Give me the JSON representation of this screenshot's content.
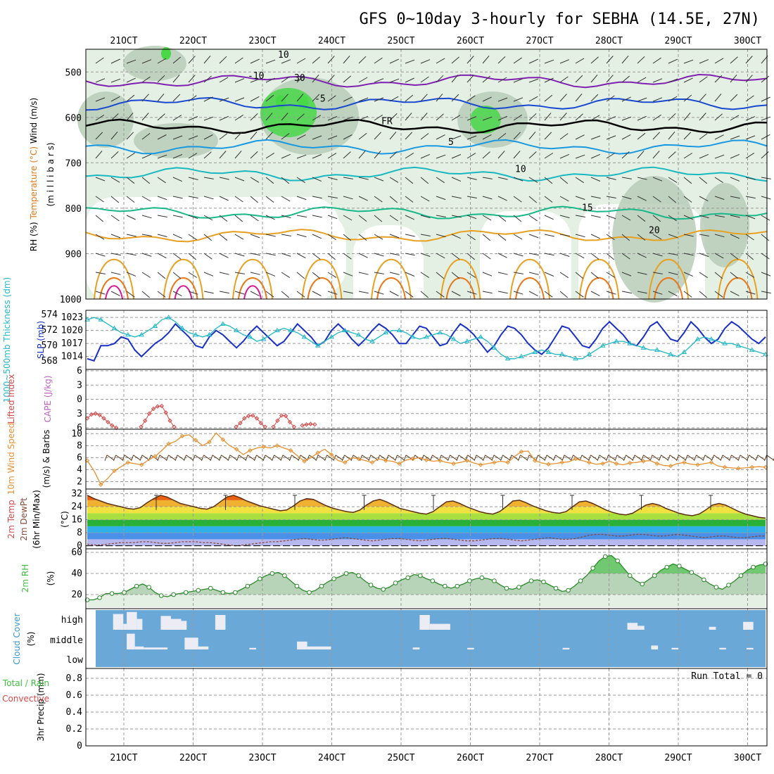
{
  "title": "GFS 0~10day 3-hourly for SEBHA (14.5E, 27N)",
  "run_total": "Run Total = 0",
  "colors": {
    "rh_dark": "#6fa06f",
    "rh_mid": "#b8cdb8",
    "rh_light": "#e4f0e4",
    "rh_green": "#48d848",
    "temp_purple": "#8020b0",
    "temp_blue": "#1848d0",
    "temp_lblue": "#1898e0",
    "temp_cyan": "#18b8c0",
    "temp_teal": "#18b888",
    "temp_orange": "#e8a020",
    "temp_dorange": "#e87818",
    "temp_magenta": "#d81890",
    "slp": "#1830c8",
    "thickness": "#20b8c8",
    "lifted": "#d84848",
    "windspeed": "#e89030",
    "rh2m": "#40c040",
    "cloud": "#6aa8d8",
    "cloud_gap": "#ececf4"
  },
  "chart_data": [
    {
      "panel": "upper-air",
      "type": "heatmap",
      "ylabel_parts": [
        "RH (%)",
        "Temperature (°C)",
        "Wind (m/s)"
      ],
      "ylabel_units": "(m i l l i b a r s)",
      "y_ticks": [
        "500",
        "600",
        "700",
        "800",
        "900",
        "1000"
      ],
      "ylim": [
        450,
        1000
      ],
      "x_ticks": [
        "21OCT",
        "22OCT",
        "23OCT",
        "24OCT",
        "25OCT",
        "26OCT",
        "27OCT",
        "28OCT",
        "29OCT",
        "30OCT"
      ],
      "isotherms": [
        {
          "label": "-10",
          "level": 520,
          "color": "#8020b0"
        },
        {
          "label": "-5",
          "level": 570,
          "color": "#1848d0"
        },
        {
          "label": "FR",
          "level": 620,
          "color": "#000000"
        },
        {
          "label": "5",
          "level": 665,
          "color": "#1898e0"
        },
        {
          "label": "10",
          "level": 725,
          "color": "#18b8c0"
        },
        {
          "label": "15",
          "level": 810,
          "color": "#18b888"
        },
        {
          "label": "20",
          "level": 860,
          "color": "#e8a020"
        }
      ],
      "rh_labels": [
        "10",
        "30"
      ]
    },
    {
      "panel": "slp-thickness",
      "type": "line",
      "ylabel_left": "1000~500mb Thickness (dm)",
      "ylabel_right": "SLP (mb)",
      "y_ticks_left": [
        "574",
        "572",
        "570",
        "568"
      ],
      "y_ticks_right": [
        "1023",
        "1020",
        "1017",
        "1014"
      ],
      "ylim_slp": [
        1012,
        1024
      ],
      "series": [
        {
          "name": "SLP (mb)",
          "values": [
            1013.5,
            1013,
            1016.5,
            1016.5,
            1017,
            1018.5,
            1018,
            1015.5,
            1014,
            1015.5,
            1017,
            1018,
            1019.5,
            1021.5,
            1020,
            1018.5,
            1016.5,
            1016,
            1018.5,
            1020,
            1019,
            1017.5,
            1016,
            1017.5,
            1019.5,
            1021,
            1019.5,
            1018,
            1016.5,
            1017.5,
            1019.5,
            1021.5,
            1020,
            1018.5,
            1016.5,
            1017.5,
            1020,
            1021.5,
            1020,
            1018,
            1016.5,
            1018,
            1020,
            1021.5,
            1020.5,
            1019,
            1017,
            1017,
            1019,
            1021,
            1020.5,
            1018.5,
            1016.5,
            1017,
            1019.5,
            1021.5,
            1020.5,
            1019,
            1017,
            1015,
            1016.5,
            1019,
            1021,
            1020.5,
            1019,
            1017,
            1015.5,
            1014.5,
            1016,
            1018.5,
            1021,
            1020.5,
            1018.5,
            1016.5,
            1016,
            1018,
            1020.5,
            1022,
            1020.5,
            1019,
            1017,
            1016.5,
            1018.5,
            1021,
            1022,
            1020,
            1018,
            1017.5,
            1019.5,
            1022,
            1020.5,
            1018.5,
            1017,
            1018,
            1020.5,
            1022,
            1021,
            1019.5,
            1018,
            1017,
            1018.5
          ]
        },
        {
          "name": "Thickness (dm)",
          "values": [
            1022.5,
            1023,
            1022.5,
            1021.5,
            1020.5,
            1019.5,
            1019,
            1018.5,
            1019,
            1020,
            1021,
            1022.5,
            1023,
            1022,
            1020.5,
            1019.5,
            1019,
            1018.5,
            1019,
            1020.5,
            1021.5,
            1021,
            1020,
            1019,
            1018.5,
            1017.5,
            1018,
            1019,
            1020,
            1020.5,
            1020,
            1019.5,
            1018.5,
            1017.5,
            1016.5,
            1017.5,
            1018.5,
            1019.5,
            1020,
            1019.5,
            1019,
            1018,
            1017.5,
            1018.5,
            1019.5,
            1020,
            1020,
            1019.5,
            1018.5,
            1018,
            1018.5,
            1019,
            1019.5,
            1019,
            1018,
            1017,
            1017.5,
            1018,
            1018.5,
            1017.5,
            1016,
            1014.5,
            1013.5,
            1013.5,
            1014,
            1014.5,
            1015,
            1015.5,
            1015,
            1014.5,
            1014.5,
            1014,
            1013.5,
            1013.5,
            1014.5,
            1015.5,
            1016.5,
            1017,
            1017.5,
            1017.5,
            1017,
            1016.5,
            1016,
            1015.5,
            1015.5,
            1015,
            1014.5,
            1014,
            1015,
            1016.5,
            1018,
            1018.5,
            1018,
            1017.5,
            1017,
            1017,
            1016.5,
            1016,
            1015.5,
            1015,
            1014.5
          ]
        }
      ]
    },
    {
      "panel": "cape-lifted",
      "type": "line",
      "ylabel_left": "Lifted Index",
      "ylabel_right": "CAPE (J/kg)",
      "y_ticks": [
        "6",
        "3",
        "0",
        "3",
        "6"
      ],
      "ylim": [
        -6,
        6
      ],
      "series": [
        {
          "name": "Lifted Index",
          "values": [
            4,
            3.2,
            3,
            3.3,
            4,
            4.8,
            5.5,
            6,
            null,
            null,
            null,
            null,
            null,
            5.8,
            4.5,
            3,
            2,
            1.5,
            1.4,
            2.8,
            4.5,
            5.8,
            null,
            null,
            null,
            null,
            null,
            null,
            null,
            null,
            null,
            null,
            null,
            null,
            null,
            null,
            5.8,
            5,
            4,
            3.5,
            3.4,
            4,
            5,
            5.8,
            null,
            5.8,
            4.5,
            3.4,
            3.5,
            4.8,
            5.8,
            null,
            5.5,
            5.3,
            5.2,
            5.3,
            null
          ]
        }
      ]
    },
    {
      "panel": "wind10m",
      "type": "line",
      "ylabel_left": "10m Wind Speed",
      "ylabel_right": "(m/s) & Barbs",
      "y_ticks": [
        "10",
        "8",
        "6",
        "4",
        "2"
      ],
      "ylim": [
        1,
        10.5
      ],
      "series": [
        {
          "name": "10m Wind Speed (m/s)",
          "values": [
            5.5,
            3.8,
            1.5,
            2.5,
            3.8,
            4.5,
            5.2,
            5,
            4.8,
            5.6,
            6.2,
            7.2,
            8.3,
            8.7,
            9.6,
            9.8,
            8.9,
            8,
            8.6,
            10.1,
            9,
            8,
            7.4,
            6.5,
            7.2,
            7.6,
            7.8,
            7.6,
            8,
            7.6,
            7.2,
            6.3,
            5.4,
            6,
            6.8,
            7.4,
            6.5,
            5.5,
            5.2,
            6,
            5.8,
            5.5,
            5.2,
            5.8,
            5.5,
            5.4,
            5,
            5.6,
            5.8,
            6,
            5.6,
            5.4,
            5.5,
            5.2,
            5,
            5.2,
            5.5,
            5.1,
            4.8,
            5,
            5.2,
            5.4,
            5.2,
            6.2,
            7,
            7.1,
            5.5,
            5.1,
            4.9,
            5,
            5.2,
            5.3,
            5.8,
            5.5,
            5.2,
            4.9,
            5,
            5.4,
            5,
            4.8,
            5.1,
            5.2,
            5.4,
            5.5,
            5,
            4.7,
            4.6,
            5,
            5.2,
            4.9,
            4.8,
            5,
            5.2,
            4.6,
            4.4,
            4.3,
            4.2,
            4.3,
            4.4,
            4.5,
            4.4
          ]
        }
      ]
    },
    {
      "panel": "temp2m",
      "type": "area",
      "ylabel_parts": [
        "2m Temp",
        "2m DewPt",
        "(6hr Min/Max)"
      ],
      "ylabel_units": "(°C)",
      "y_ticks": [
        "32",
        "24",
        "16",
        "8",
        "0"
      ],
      "ylim": [
        -1,
        34
      ],
      "series": [
        {
          "name": "2m Temp (°C)",
          "values": [
            31,
            29,
            27.5,
            26,
            25,
            24,
            23,
            22.5,
            23.5,
            26.5,
            29,
            31,
            30,
            28,
            26,
            25,
            24,
            23,
            22.5,
            24,
            27,
            30,
            31,
            29.5,
            27.5,
            26,
            24.5,
            23.5,
            22.5,
            21.5,
            22,
            24.5,
            27.5,
            29,
            28.5,
            26.5,
            24.5,
            23,
            22,
            21,
            20.5,
            22,
            25,
            27.5,
            28.5,
            27,
            25,
            23,
            22,
            21,
            20,
            19.5,
            21,
            24,
            27,
            27.5,
            26,
            24,
            22.5,
            21,
            20,
            19.5,
            21,
            24,
            27.5,
            28,
            26.5,
            24.5,
            23,
            21.5,
            20.5,
            20,
            21,
            24,
            27,
            27.5,
            26,
            24,
            22,
            20.5,
            19.5,
            19,
            20,
            22.5,
            25,
            26,
            25,
            23,
            21.5,
            20,
            19,
            18.5,
            19.5,
            22,
            25,
            26,
            25,
            23,
            21,
            19.5,
            18.5,
            17.5,
            17
          ]
        },
        {
          "name": "2m DewPt (°C)",
          "values": [
            1,
            0.5,
            0.5,
            1,
            1.5,
            2,
            2,
            2,
            2.5,
            2.5,
            2,
            1.5,
            1.5,
            2,
            2.5,
            2.5,
            2.5,
            2,
            2,
            1.5,
            1,
            0.5,
            0,
            0.5,
            1,
            1.5,
            2,
            2.5,
            2.5,
            3,
            3.5,
            4,
            4.5,
            4,
            3.5,
            3.5,
            4,
            4.5,
            5,
            4.5,
            4,
            3.5,
            3,
            3.5,
            4,
            4.5,
            4.5,
            4,
            3.5,
            3,
            3.5,
            4,
            4.5,
            4.5,
            4,
            3.5,
            3,
            3,
            3.5,
            4,
            4.5,
            4.5,
            4,
            3.5,
            3,
            3.5,
            4,
            4.5,
            5,
            4.5,
            4,
            4,
            4.5,
            5.5,
            6.5,
            7,
            7,
            6.5,
            6,
            6,
            6.5,
            7,
            7,
            6.5,
            6,
            6,
            6.5,
            7,
            6.5,
            6,
            5.5,
            5,
            5.5,
            6,
            6,
            5.5,
            5,
            5,
            5.5,
            6,
            6
          ]
        }
      ]
    },
    {
      "panel": "rh2m",
      "type": "area",
      "ylabel_left": "2m RH",
      "ylabel_units": "(%)",
      "y_ticks": [
        "60",
        "40",
        "20"
      ],
      "ylim": [
        8,
        62
      ],
      "series": [
        {
          "name": "2m RH (%)",
          "values": [
            15,
            15,
            17,
            21,
            21,
            21,
            22,
            25,
            28,
            30,
            27,
            22,
            19,
            18,
            20,
            21,
            22,
            23,
            24,
            25,
            26,
            24,
            22,
            21,
            22,
            25,
            28,
            31,
            35,
            38,
            40,
            41,
            38,
            33,
            28,
            24,
            22,
            24,
            28,
            32,
            35,
            37,
            40,
            41,
            38,
            33,
            29,
            26,
            25,
            27,
            31,
            34,
            36,
            39,
            38,
            35,
            33,
            30,
            28,
            26,
            28,
            30,
            33,
            35,
            36,
            35,
            33,
            29,
            26,
            25,
            27,
            30,
            33,
            34,
            32,
            29,
            26,
            23,
            24,
            28,
            33,
            38,
            45,
            52,
            56,
            57,
            52,
            45,
            38,
            33,
            30,
            34,
            38,
            43,
            46,
            49,
            47,
            44,
            41,
            38,
            34,
            30,
            27,
            25,
            29,
            33,
            38,
            43,
            46,
            48,
            49
          ]
        }
      ]
    },
    {
      "panel": "cloud",
      "type": "bar",
      "ylabel_left": "Cloud Cover",
      "ylabel_units": "(%)",
      "y_ticks": [
        "high",
        "middle",
        "low"
      ],
      "series": [
        {
          "name": "high",
          "gaps": [
            [
              0.04,
              0.055,
              0.8
            ],
            [
              0.055,
              0.06,
              0.3
            ],
            [
              0.06,
              0.075,
              0.9
            ],
            [
              0.075,
              0.083,
              0.55
            ],
            [
              0.11,
              0.125,
              0.7
            ],
            [
              0.125,
              0.14,
              0.55
            ],
            [
              0.14,
              0.148,
              0.45
            ],
            [
              0.19,
              0.205,
              0.75
            ],
            [
              0.49,
              0.505,
              0.75
            ],
            [
              0.505,
              0.535,
              0.3
            ],
            [
              0.795,
              0.81,
              0.35
            ],
            [
              0.81,
              0.82,
              0.2
            ],
            [
              0.915,
              0.925,
              0.15
            ],
            [
              0.965,
              0.98,
              0.4
            ]
          ]
        },
        {
          "name": "middle",
          "gaps": [
            [
              0.06,
              0.072,
              0.8
            ],
            [
              0.072,
              0.085,
              0.15
            ],
            [
              0.085,
              0.12,
              0.1
            ],
            [
              0.145,
              0.165,
              0.6
            ],
            [
              0.165,
              0.18,
              0.15
            ],
            [
              0.31,
              0.325,
              0.4
            ],
            [
              0.325,
              0.36,
              0.15
            ],
            [
              0.24,
              0.25,
              0.08
            ],
            [
              0.48,
              0.49,
              0.1
            ],
            [
              0.56,
              0.57,
              0.08
            ],
            [
              0.7,
              0.71,
              0.08
            ],
            [
              0.83,
              0.84,
              0.2
            ],
            [
              0.86,
              0.87,
              0.08
            ],
            [
              0.93,
              0.94,
              0.08
            ],
            [
              0.97,
              0.98,
              0.08
            ]
          ]
        }
      ]
    },
    {
      "panel": "precip",
      "type": "bar",
      "ylabel_left": "3hr Precip (mm)",
      "ylabel_right_parts": [
        "Total / Rain",
        "Convective"
      ],
      "y_ticks": [
        "0.8",
        "0.6",
        "0.4",
        "0.2",
        "0"
      ],
      "ylim": [
        0,
        0.9
      ],
      "values": []
    }
  ]
}
